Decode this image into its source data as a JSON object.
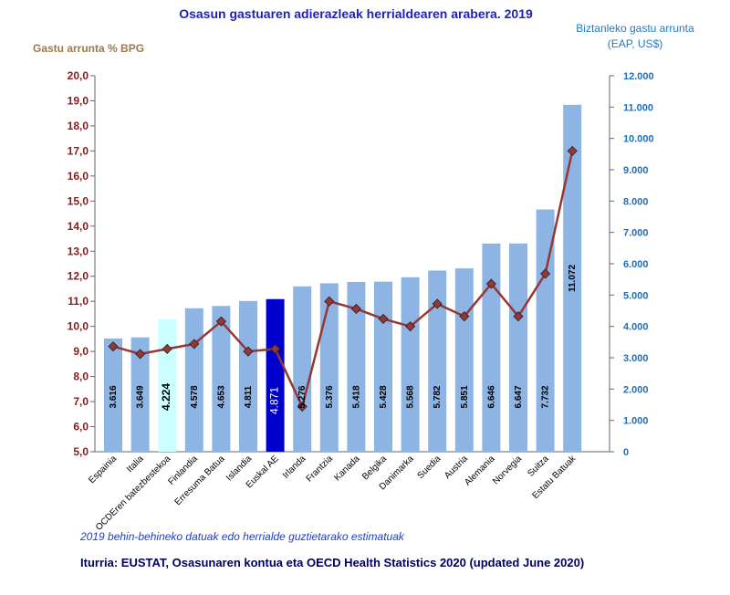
{
  "chart_data": {
    "type": "bar",
    "title": "Osasun gastuaren adierazleak herrialdearen arabera. 2019",
    "left_axis_title": "Gastu arrunta % BPG",
    "right_axis_title_line1": "Biztanleko gastu arrunta",
    "right_axis_title_line2": "(EAP, US$)",
    "categories": [
      "Espainia",
      "Italia",
      "OCDEren batezbestekoa",
      "Finlandia",
      "Erresuma Batua",
      "Islandia",
      "Euskal AE",
      "Irlanda",
      "Frantzia",
      "Kanada",
      "Belgika",
      "Danimarka",
      "Suedia",
      "Austria",
      "Alemania",
      "Norvegia",
      "Suitza",
      "Estatu Batuak"
    ],
    "series": [
      {
        "name": "Biztanleko gastu arrunta (EAP, US$)",
        "axis": "right",
        "render": "bar",
        "values": [
          3616,
          3649,
          4224,
          4578,
          4653,
          4811,
          4871,
          5276,
          5376,
          5418,
          5428,
          5568,
          5782,
          5851,
          6646,
          6647,
          7732,
          11072
        ],
        "labels": [
          "3.616",
          "3.649",
          "4.224",
          "4.578",
          "4.653",
          "4.811",
          "4.871",
          "5.276",
          "5.376",
          "5.418",
          "5.428",
          "5.568",
          "5.782",
          "5.851",
          "6.646",
          "6.647",
          "7.732",
          "11.072"
        ]
      },
      {
        "name": "Gastu arrunta % BPG",
        "axis": "left",
        "render": "line",
        "values": [
          9.2,
          8.9,
          9.1,
          9.3,
          10.2,
          9.0,
          9.1,
          6.8,
          11.0,
          10.7,
          10.3,
          10.0,
          10.9,
          10.4,
          11.7,
          10.4,
          12.1,
          17.0
        ]
      }
    ],
    "highlight": {
      "OCDEren batezbestekoa": "#ccffff",
      "Euskal AE": "#0000cc"
    },
    "colors": {
      "bar": "#8eb4e3",
      "line": "#953735",
      "marker": "#953735"
    },
    "left_ylim": [
      5,
      20
    ],
    "left_ticks": [
      "5,0",
      "6,0",
      "7,0",
      "8,0",
      "9,0",
      "10,0",
      "11,0",
      "12,0",
      "13,0",
      "14,0",
      "15,0",
      "16,0",
      "17,0",
      "18,0",
      "19,0",
      "20,0"
    ],
    "right_ylim": [
      0,
      12000
    ],
    "right_ticks": [
      "0",
      "1.000",
      "2.000",
      "3.000",
      "4.000",
      "5.000",
      "6.000",
      "7.000",
      "8.000",
      "9.000",
      "10.000",
      "11.000",
      "12.000"
    ],
    "footnote": "2019 behin-behineko datuak edo herrialde guztietarako estimatuak",
    "source": "Iturria: EUSTAT, Osasunaren kontua eta OECD Health Statistics 2020 (updated June 2020)"
  }
}
